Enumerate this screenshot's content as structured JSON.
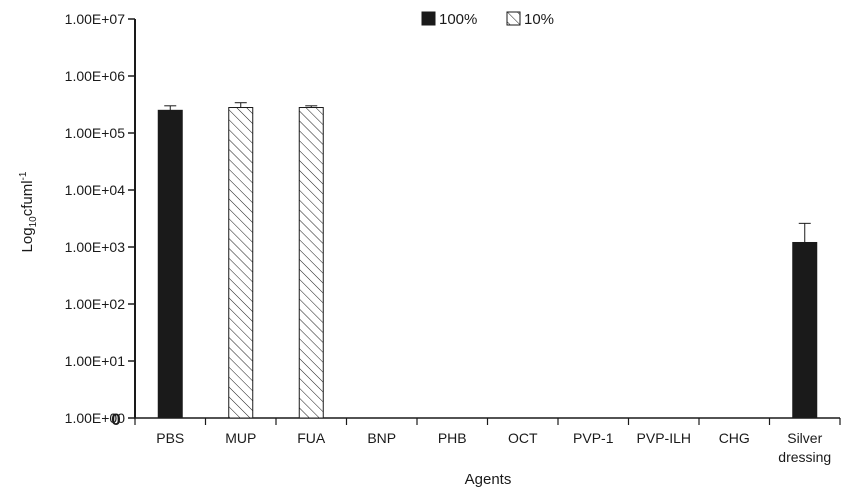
{
  "chart_data": {
    "type": "bar",
    "xlabel": "Agents",
    "ylabel_prefix": "Log",
    "ylabel_sub": "10",
    "ylabel_suffix": "cfuml",
    "ylabel_sup": "-1",
    "y_scale": "log",
    "ylim": [
      1,
      10000000
    ],
    "y_ticks": [
      {
        "value": 1,
        "label": "1.00E+00"
      },
      {
        "value": 10,
        "label": "1.00E+01"
      },
      {
        "value": 100,
        "label": "1.00E+02"
      },
      {
        "value": 1000,
        "label": "1.00E+03"
      },
      {
        "value": 10000,
        "label": "1.00E+04"
      },
      {
        "value": 100000,
        "label": "1.00E+05"
      },
      {
        "value": 1000000,
        "label": "1.00E+06"
      },
      {
        "value": 10000000,
        "label": "1.00E+07"
      }
    ],
    "zero_marker": "0",
    "categories": [
      {
        "lines": [
          "PBS"
        ]
      },
      {
        "lines": [
          "MUP"
        ]
      },
      {
        "lines": [
          "FUA"
        ]
      },
      {
        "lines": [
          "BNP"
        ]
      },
      {
        "lines": [
          "PHB"
        ]
      },
      {
        "lines": [
          "OCT"
        ]
      },
      {
        "lines": [
          "PVP-1"
        ]
      },
      {
        "lines": [
          "PVP-ILH"
        ]
      },
      {
        "lines": [
          "CHG"
        ]
      },
      {
        "lines": [
          "Silver",
          "dressing"
        ]
      }
    ],
    "series": [
      {
        "name": "100%",
        "fill": "#1a1a1a",
        "pattern": "solid",
        "values": [
          250000,
          null,
          null,
          null,
          null,
          null,
          null,
          null,
          null,
          1200.0
        ],
        "errors_upper": [
          300000,
          null,
          null,
          null,
          null,
          null,
          null,
          null,
          null,
          2600
        ]
      },
      {
        "name": "10%",
        "fill": "#ffffff",
        "pattern": "hatch",
        "values": [
          null,
          280000,
          280000,
          null,
          null,
          null,
          null,
          null,
          null,
          null
        ],
        "errors_upper": [
          null,
          340000,
          300000,
          null,
          null,
          null,
          null,
          null,
          null,
          null
        ]
      }
    ],
    "legend_position": "top-center",
    "grid": false
  }
}
